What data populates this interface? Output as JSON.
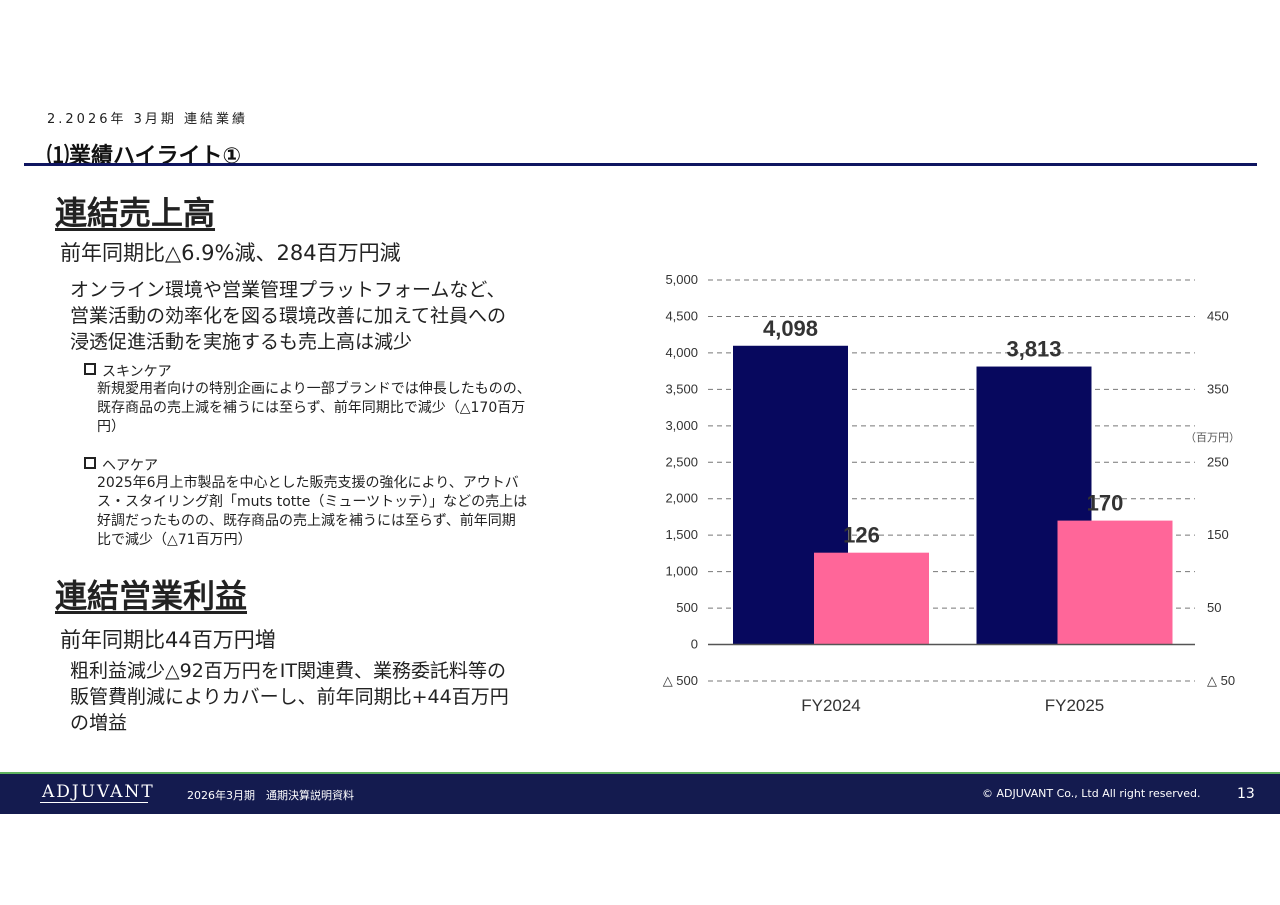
{
  "header": {
    "section": "2.2026年 3月期 連結業績",
    "title": "⑴業績ハイライト①"
  },
  "sales": {
    "heading": "連結売上高",
    "summary": "前年同期比△6.9%減、284百万円減",
    "body_lines": [
      "オンライン環境や営業管理プラットフォームなど、",
      "営業活動の効率化を図る環境改善に加えて社員への",
      "浸透促進活動を実施するも売上高は減少"
    ],
    "bullets": [
      {
        "title": "スキンケア",
        "lines": [
          "新規愛用者向けの特別企画により一部ブランドでは伸長したものの、",
          "既存商品の売上減を補うには至らず、前年同期比で減少（△170百万",
          "円）"
        ]
      },
      {
        "title": "ヘアケア",
        "lines": [
          "2025年6月上市製品を中心とした販売支援の強化により、アウトバ",
          "ス・スタイリング剤「muts totte（ミューツトッテ）」などの売上は",
          "好調だったものの、既存商品の売上減を補うには至らず、前年同期",
          "比で減少（△71百万円）"
        ]
      }
    ]
  },
  "op_income": {
    "heading": "連結営業利益",
    "summary": "前年同期比44百万円増",
    "body_lines": [
      "粗利益減少△92百万円をIT関連費、業務委託料等の",
      "販管費削減によりカバーし、前年同期比+44百万円",
      "の増益"
    ]
  },
  "chart_data": {
    "type": "bar",
    "categories": [
      "FY2024",
      "FY2025"
    ],
    "series": [
      {
        "axis": "left",
        "color": "#07085e",
        "values": [
          4098,
          3813
        ],
        "labels": [
          "4,098",
          "3,813"
        ]
      },
      {
        "axis": "right",
        "color": "#ff6699",
        "values": [
          126,
          170
        ],
        "labels": [
          "126",
          "170"
        ]
      }
    ],
    "left_axis": {
      "ylim": [
        -500,
        5000
      ],
      "ticks": [
        5000,
        4500,
        4000,
        3500,
        3000,
        2500,
        2000,
        1500,
        1000,
        500,
        0
      ],
      "tick_labels": [
        "5,000",
        "4,500",
        "4,000",
        "3,500",
        "3,000",
        "2,500",
        "2,000",
        "1,500",
        "1,000",
        "500",
        "0"
      ],
      "neg_label": "△ 500"
    },
    "right_axis": {
      "ylim": [
        -50,
        500
      ],
      "ticks": [
        450,
        350,
        250,
        150,
        50
      ],
      "tick_labels": [
        "450",
        "350",
        "250",
        "150",
        "50"
      ],
      "neg_label": "△ 50",
      "unit": "（百万円）"
    },
    "grid": true
  },
  "footer": {
    "logo": "ADJUVANT",
    "doc": "2026年3月期　通期決算説明資料",
    "copyright": "© ADJUVANT Co., Ltd All right reserved.",
    "page": "13"
  }
}
